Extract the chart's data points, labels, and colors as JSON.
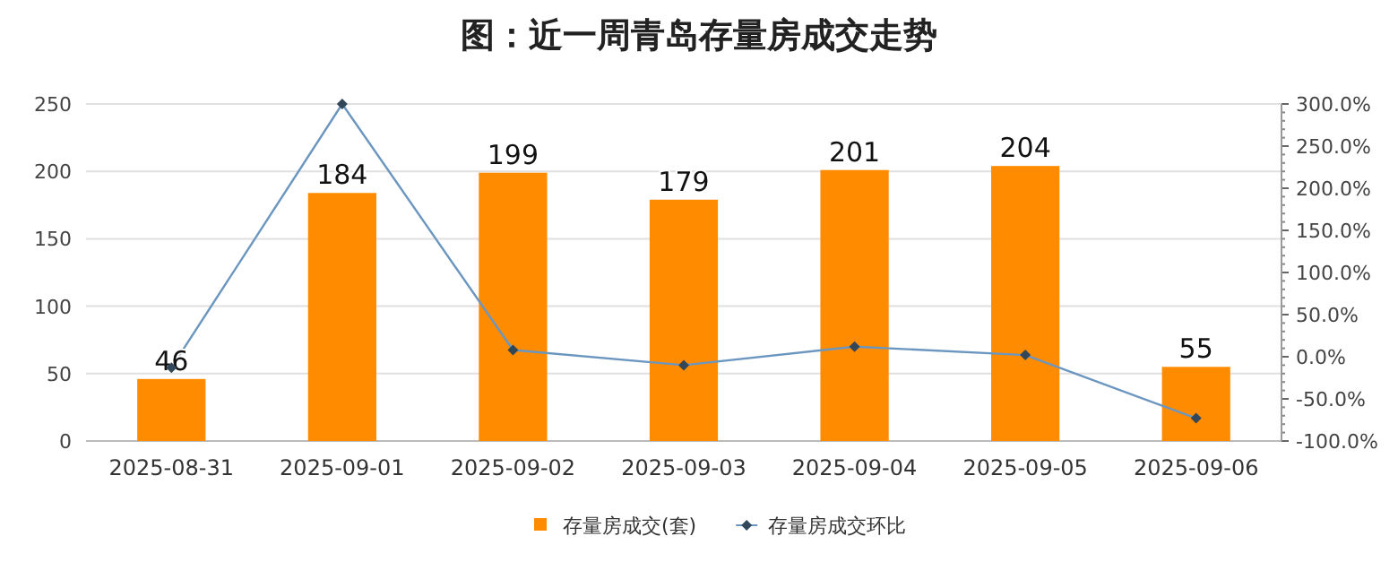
{
  "chart_data": {
    "type": "bar",
    "title": "图：近一周青岛存量房成交走势",
    "categories": [
      "2025-08-31",
      "2025-09-01",
      "2025-09-02",
      "2025-09-03",
      "2025-09-04",
      "2025-09-05",
      "2025-09-06"
    ],
    "series": [
      {
        "name": "存量房成交(套)",
        "color": "#ff8c00",
        "values": [
          46,
          184,
          199,
          179,
          201,
          204,
          55
        ],
        "data_labels": true
      },
      {
        "name": "存量房成交环比",
        "type": "line",
        "axis": "y2",
        "color": "#6b96c0",
        "marker": "diamond",
        "values": [
          -13,
          300,
          8,
          -10,
          12,
          2,
          -73
        ]
      }
    ],
    "ylim": [
      0,
      250
    ],
    "yticks": [
      0,
      50,
      100,
      150,
      200,
      250
    ],
    "y2lim": [
      -100,
      300
    ],
    "y2ticks": [
      {
        "value": -100,
        "label": "-100.0%"
      },
      {
        "value": -50,
        "label": "-50.0%"
      },
      {
        "value": 0,
        "label": "0.0%"
      },
      {
        "value": 50,
        "label": "50.0%"
      },
      {
        "value": 100,
        "label": "100.0%"
      },
      {
        "value": 150,
        "label": "150.0%"
      },
      {
        "value": 200,
        "label": "200.0%"
      },
      {
        "value": 250,
        "label": "250.0%"
      },
      {
        "value": 300,
        "label": "300.0%"
      }
    ],
    "grid": "y",
    "legend": "bottom"
  }
}
